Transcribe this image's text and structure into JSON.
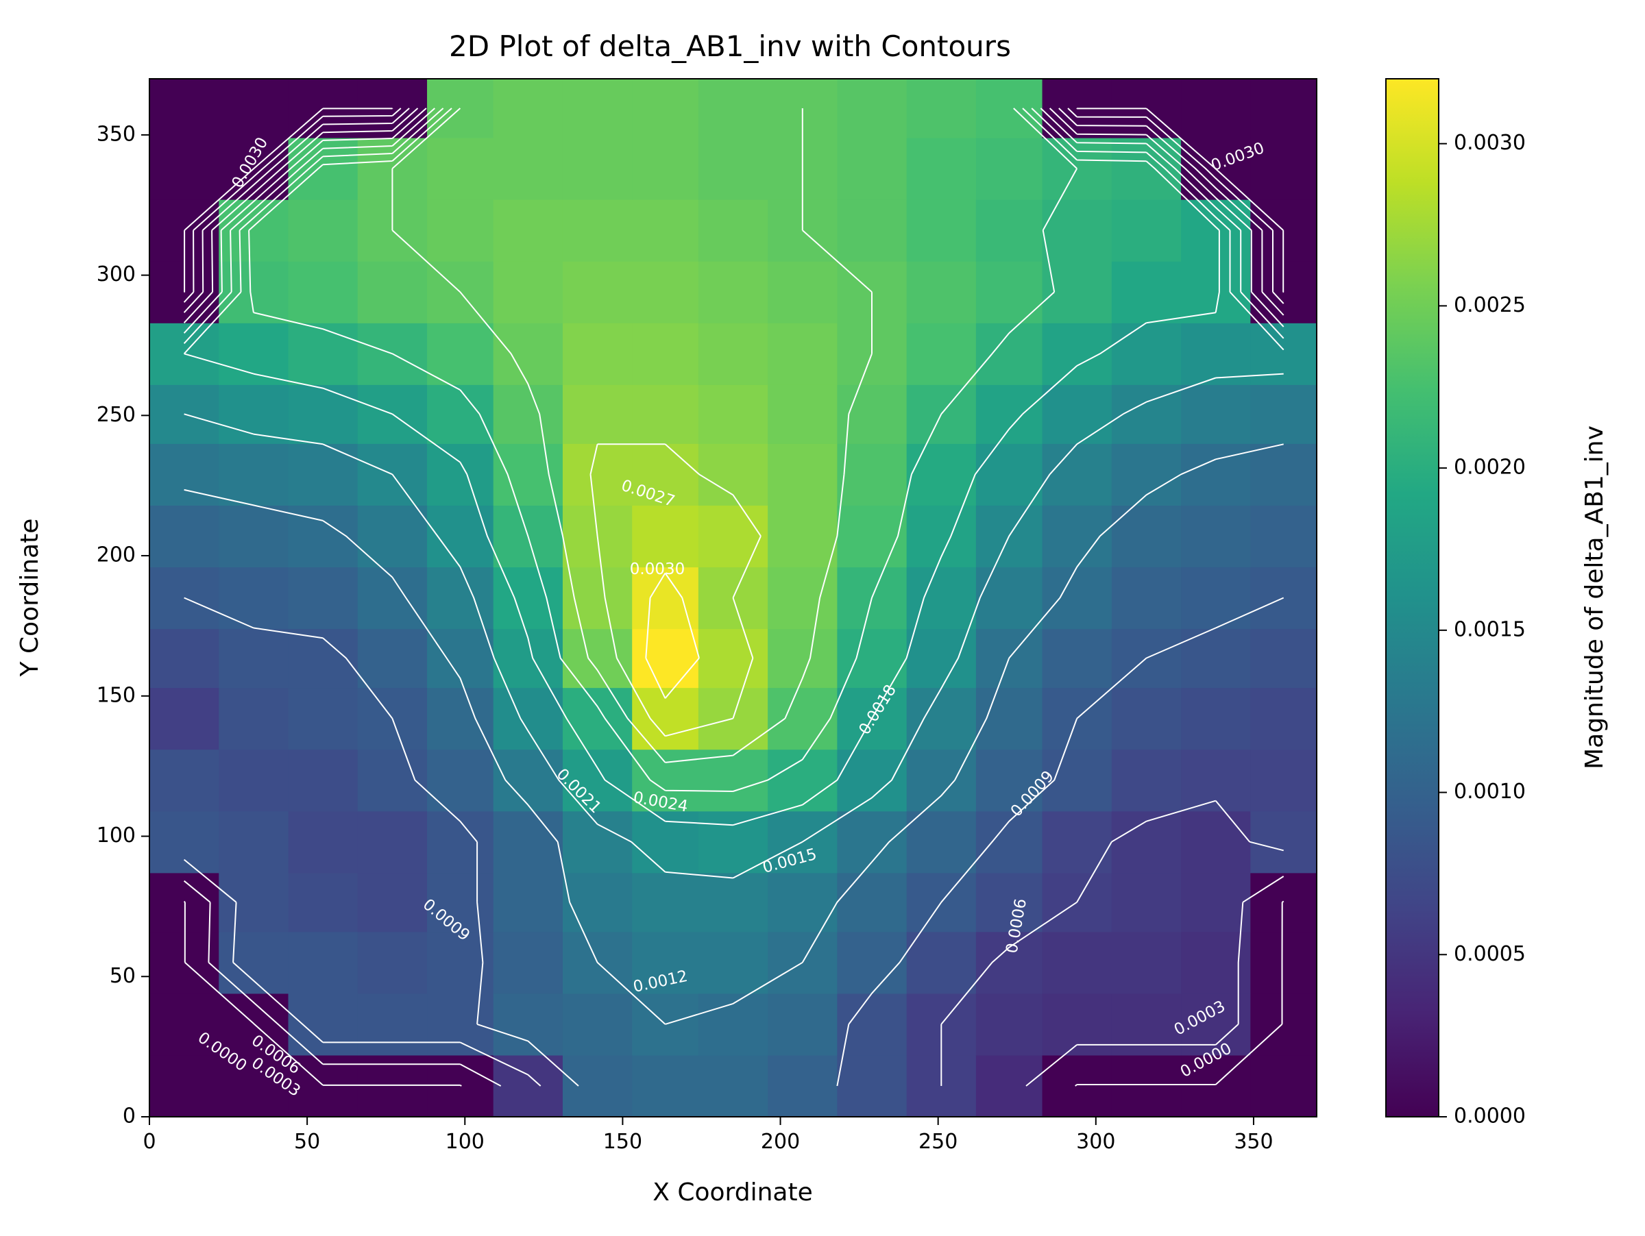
{
  "chart_data": {
    "type": "heatmap",
    "title": "2D Plot of delta_AB1_inv with Contours",
    "xlabel": "X Coordinate",
    "ylabel": "Y Coordinate",
    "xlim": [
      0,
      370
    ],
    "ylim": [
      0,
      370
    ],
    "x_ticks": [
      0,
      50,
      100,
      150,
      200,
      250,
      300,
      350
    ],
    "y_ticks": [
      0,
      50,
      100,
      150,
      200,
      250,
      300,
      350
    ],
    "x_tick_labels": [
      "0",
      "50",
      "100",
      "150",
      "200",
      "250",
      "300",
      "350"
    ],
    "y_tick_labels": [
      "0",
      "50",
      "100",
      "150",
      "200",
      "250",
      "300",
      "350"
    ],
    "colorbar": {
      "label": "Magnitude of delta_AB1_inv",
      "colormap": "viridis",
      "range": [
        0.0,
        0.0032
      ],
      "ticks": [
        0.0,
        0.0005,
        0.001,
        0.0015,
        0.002,
        0.0025,
        0.003
      ],
      "tick_labels": [
        "0.0000",
        "0.0005",
        "0.0010",
        "0.0015",
        "0.0020",
        "0.0025",
        "0.0030"
      ]
    },
    "contours": {
      "line_color": "#ffffff",
      "levels": [
        0.0,
        0.0003,
        0.0006,
        0.0009,
        0.0012,
        0.0015,
        0.0018,
        0.0021,
        0.0024,
        0.0027,
        0.003
      ]
    },
    "grid_x_edges": [
      0,
      22,
      44,
      66,
      88,
      109,
      131,
      153,
      174,
      196,
      218,
      240,
      262,
      283,
      305,
      327,
      349,
      370
    ],
    "grid_y_edges": [
      0,
      22,
      44,
      66,
      87,
      109,
      131,
      153,
      174,
      196,
      218,
      240,
      261,
      283,
      305,
      327,
      349,
      370
    ],
    "values": [
      [
        0.0,
        0.0,
        0.0,
        0.0,
        0.0,
        0.0005,
        0.00105,
        0.0011,
        0.0011,
        0.001,
        0.0008,
        0.0006,
        0.0004,
        0.0,
        0.0,
        0.0,
        0.0
      ],
      [
        0.0,
        0.0,
        0.00085,
        0.00085,
        0.00085,
        0.00105,
        0.0011,
        0.0012,
        0.00115,
        0.0011,
        0.0008,
        0.0006,
        0.0005,
        0.00045,
        0.00045,
        0.00045,
        0.0
      ],
      [
        0.0,
        0.00085,
        0.00085,
        0.0008,
        0.00085,
        0.001,
        0.0012,
        0.0013,
        0.0013,
        0.0012,
        0.001,
        0.00075,
        0.00055,
        0.0005,
        0.0005,
        0.00045,
        0.0
      ],
      [
        0.0,
        0.0008,
        0.00075,
        0.0007,
        0.00085,
        0.00105,
        0.0013,
        0.0014,
        0.0014,
        0.0013,
        0.0011,
        0.0009,
        0.00075,
        0.0006,
        0.00055,
        0.0005,
        0.0
      ],
      [
        0.00085,
        0.0008,
        0.0007,
        0.0007,
        0.00085,
        0.00105,
        0.0014,
        0.0016,
        0.00165,
        0.0015,
        0.00125,
        0.00105,
        0.00085,
        0.00065,
        0.00055,
        0.0005,
        0.0007
      ],
      [
        0.0008,
        0.00075,
        0.00075,
        0.00085,
        0.001,
        0.0013,
        0.00175,
        0.0022,
        0.0022,
        0.002,
        0.0016,
        0.00125,
        0.001,
        0.00085,
        0.0007,
        0.00065,
        0.00065
      ],
      [
        0.0006,
        0.0008,
        0.00085,
        0.0009,
        0.0011,
        0.00155,
        0.002,
        0.0029,
        0.0027,
        0.0023,
        0.0018,
        0.0014,
        0.0011,
        0.0009,
        0.0008,
        0.00075,
        0.0007
      ],
      [
        0.00075,
        0.00085,
        0.00085,
        0.001,
        0.00125,
        0.00175,
        0.0025,
        0.0032,
        0.0028,
        0.00245,
        0.002,
        0.0016,
        0.0012,
        0.001,
        0.0009,
        0.00085,
        0.0008
      ],
      [
        0.0009,
        0.00095,
        0.001,
        0.00115,
        0.0014,
        0.0019,
        0.00265,
        0.0031,
        0.0027,
        0.0025,
        0.0021,
        0.0017,
        0.00135,
        0.00115,
        0.001,
        0.00095,
        0.0009
      ],
      [
        0.00105,
        0.0011,
        0.00115,
        0.0013,
        0.0016,
        0.0021,
        0.0027,
        0.00285,
        0.0028,
        0.00255,
        0.00225,
        0.00185,
        0.0015,
        0.00125,
        0.0011,
        0.00105,
        0.001
      ],
      [
        0.00125,
        0.0013,
        0.00135,
        0.0015,
        0.00175,
        0.00225,
        0.00275,
        0.00275,
        0.00265,
        0.00255,
        0.0023,
        0.00195,
        0.00165,
        0.0014,
        0.00125,
        0.00115,
        0.0011
      ],
      [
        0.0015,
        0.0016,
        0.00165,
        0.0018,
        0.002,
        0.00235,
        0.00265,
        0.00265,
        0.0026,
        0.0025,
        0.00235,
        0.0021,
        0.00185,
        0.0016,
        0.00145,
        0.00135,
        0.0013
      ],
      [
        0.0018,
        0.0019,
        0.002,
        0.0021,
        0.00225,
        0.00245,
        0.0026,
        0.0026,
        0.00255,
        0.0025,
        0.0024,
        0.00225,
        0.00205,
        0.00185,
        0.0017,
        0.0016,
        0.0016
      ],
      [
        0.0,
        0.0022,
        0.00225,
        0.00235,
        0.0024,
        0.0025,
        0.00255,
        0.00255,
        0.0025,
        0.00245,
        0.0024,
        0.0023,
        0.0022,
        0.00205,
        0.0019,
        0.0019,
        0.0
      ],
      [
        0.0,
        0.00225,
        0.0023,
        0.0024,
        0.00245,
        0.0025,
        0.0025,
        0.0025,
        0.00245,
        0.0024,
        0.00235,
        0.00225,
        0.00215,
        0.00205,
        0.002,
        0.0019,
        0.0
      ],
      [
        0.0,
        0.0,
        0.00225,
        0.0024,
        0.00245,
        0.00245,
        0.00245,
        0.00245,
        0.0024,
        0.0024,
        0.00235,
        0.00225,
        0.0022,
        0.0021,
        0.00205,
        0.0,
        0.0
      ],
      [
        0.0,
        0.0,
        0.0,
        0.0,
        0.0024,
        0.00245,
        0.00245,
        0.00245,
        0.0024,
        0.0024,
        0.00235,
        0.0023,
        0.00225,
        0.0,
        0.0,
        0.0,
        0.0
      ]
    ],
    "contour_labels": [
      {
        "text": "0.0027",
        "x": 158,
        "y": 222,
        "angle": 18
      },
      {
        "text": "0.0030",
        "x": 161,
        "y": 195,
        "angle": 0
      },
      {
        "text": "0.0021",
        "x": 136,
        "y": 116,
        "angle": 45
      },
      {
        "text": "0.0024",
        "x": 162,
        "y": 112,
        "angle": 10
      },
      {
        "text": "0.0018",
        "x": 231,
        "y": 145,
        "angle": -58
      },
      {
        "text": "0.0015",
        "x": 203,
        "y": 91,
        "angle": -15
      },
      {
        "text": "0.0012",
        "x": 162,
        "y": 48,
        "angle": -12
      },
      {
        "text": "0.0009",
        "x": 94,
        "y": 70,
        "angle": 40
      },
      {
        "text": "0.0009",
        "x": 280,
        "y": 115,
        "angle": -48
      },
      {
        "text": "0.0006",
        "x": 275,
        "y": 68,
        "angle": -80
      },
      {
        "text": "0.0006",
        "x": 40,
        "y": 22,
        "angle": 35
      },
      {
        "text": "0.0003",
        "x": 40,
        "y": 14,
        "angle": 35
      },
      {
        "text": "0.0000",
        "x": 23,
        "y": 23,
        "angle": 35
      },
      {
        "text": "0.0003",
        "x": 333,
        "y": 35,
        "angle": -28
      },
      {
        "text": "0.0000",
        "x": 335,
        "y": 20,
        "angle": -28
      },
      {
        "text": "0.0030",
        "x": 32,
        "y": 340,
        "angle": -60
      },
      {
        "text": "0.0030",
        "x": 345,
        "y": 342,
        "angle": -20
      }
    ]
  }
}
